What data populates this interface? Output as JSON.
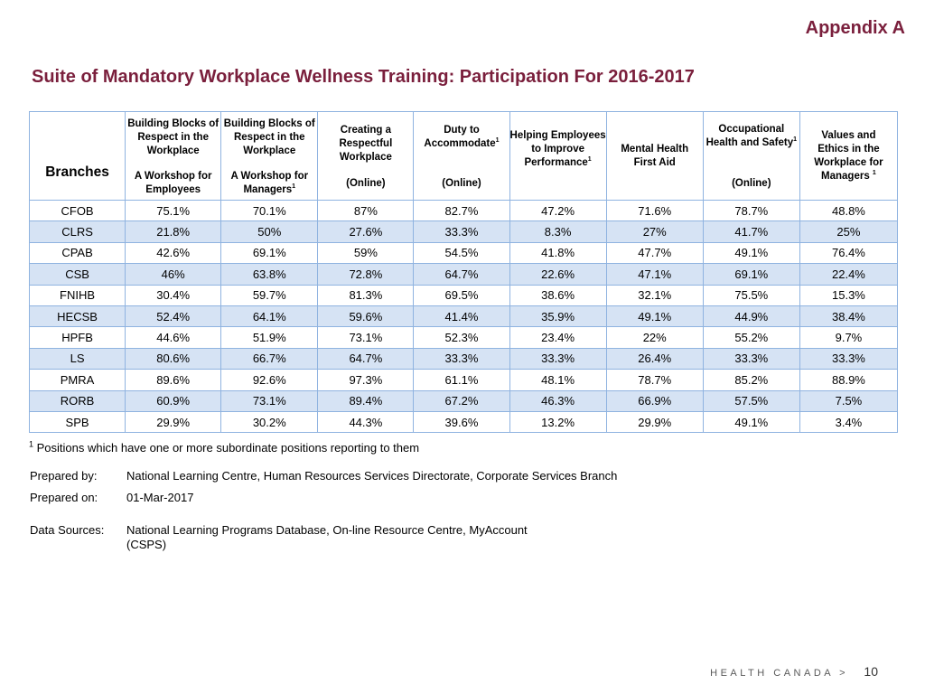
{
  "appendix": "Appendix A",
  "title": "Suite of Mandatory Workplace Wellness Training:  Participation For 2016-2017",
  "table": {
    "branches_header": "Branches",
    "headers": [
      {
        "top": "Building Blocks of Respect in the Workplace",
        "bottom": "A Workshop for Employees",
        "sup": ""
      },
      {
        "top": "Building Blocks of Respect in the Workplace",
        "bottom": "A Workshop for Managers",
        "sup": "1"
      },
      {
        "top": "Creating a Respectful Workplace",
        "bottom": "(Online)",
        "sup": ""
      },
      {
        "top": "Duty to Accommodate",
        "top_sup": "1",
        "bottom": "(Online)",
        "sup": ""
      },
      {
        "mid": "Helping Employees to Improve Performance",
        "mid_sup": "1"
      },
      {
        "mid": "Mental Health First Aid"
      },
      {
        "top": "Occupational Health and Safety",
        "top_sup": "1",
        "bottom": "(Online)"
      },
      {
        "mid": "Values and Ethics in the Workplace for Managers ",
        "mid_sup": "1"
      }
    ],
    "rows": [
      {
        "branch": "CFOB",
        "values": [
          "75.1%",
          "70.1%",
          "87%",
          "82.7%",
          "47.2%",
          "71.6%",
          "78.7%",
          "48.8%"
        ]
      },
      {
        "branch": "CLRS",
        "values": [
          "21.8%",
          "50%",
          "27.6%",
          "33.3%",
          "8.3%",
          "27%",
          "41.7%",
          "25%"
        ]
      },
      {
        "branch": "CPAB",
        "values": [
          "42.6%",
          "69.1%",
          "59%",
          "54.5%",
          "41.8%",
          "47.7%",
          "49.1%",
          "76.4%"
        ]
      },
      {
        "branch": "CSB",
        "values": [
          "46%",
          "63.8%",
          "72.8%",
          "64.7%",
          "22.6%",
          "47.1%",
          "69.1%",
          "22.4%"
        ]
      },
      {
        "branch": "FNIHB",
        "values": [
          "30.4%",
          "59.7%",
          "81.3%",
          "69.5%",
          "38.6%",
          "32.1%",
          "75.5%",
          "15.3%"
        ]
      },
      {
        "branch": "HECSB",
        "values": [
          "52.4%",
          "64.1%",
          "59.6%",
          "41.4%",
          "35.9%",
          "49.1%",
          "44.9%",
          "38.4%"
        ]
      },
      {
        "branch": "HPFB",
        "values": [
          "44.6%",
          "51.9%",
          "73.1%",
          "52.3%",
          "23.4%",
          "22%",
          "55.2%",
          "9.7%"
        ]
      },
      {
        "branch": "LS",
        "values": [
          "80.6%",
          "66.7%",
          "64.7%",
          "33.3%",
          "33.3%",
          "26.4%",
          "33.3%",
          "33.3%"
        ]
      },
      {
        "branch": "PMRA",
        "values": [
          "89.6%",
          "92.6%",
          "97.3%",
          "61.1%",
          "48.1%",
          "78.7%",
          "85.2%",
          "88.9%"
        ]
      },
      {
        "branch": "RORB",
        "values": [
          "60.9%",
          "73.1%",
          "89.4%",
          "67.2%",
          "46.3%",
          "66.9%",
          "57.5%",
          "7.5%"
        ]
      },
      {
        "branch": "SPB",
        "values": [
          "29.9%",
          "30.2%",
          "44.3%",
          "39.6%",
          "13.2%",
          "29.9%",
          "49.1%",
          "3.4%"
        ]
      }
    ]
  },
  "footnote": {
    "marker": "1",
    "text": " Positions which have one or more subordinate positions reporting to them"
  },
  "prepared_by": {
    "label": "Prepared by:",
    "value": "National Learning Centre, Human Resources Services Directorate, Corporate Services Branch"
  },
  "prepared_on": {
    "label": "Prepared on:",
    "value": "01-Mar-2017"
  },
  "data_sources": {
    "label": "Data Sources:",
    "value_line1": "National Learning Programs Database, On-line Resource Centre, MyAccount",
    "value_line2": "(CSPS)"
  },
  "footer": {
    "brand": "HEALTH CANADA >",
    "page": "10"
  },
  "colors": {
    "title": "#7a1f3c",
    "alt_row": "#d6e3f4",
    "grid": "#8fb3e0"
  }
}
